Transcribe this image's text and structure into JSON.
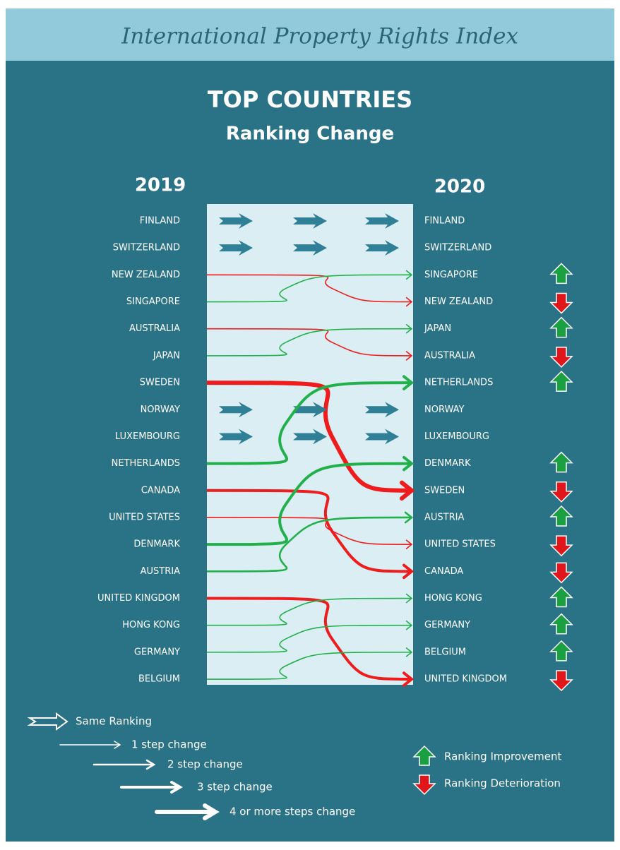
{
  "header": {
    "title": "International Property Rights Index"
  },
  "heading": "TOP COUNTRIES",
  "subheading": "Ranking Change",
  "years": {
    "left": "2019",
    "right": "2020"
  },
  "left": [
    "FINLAND",
    "SWITZERLAND",
    "NEW ZEALAND",
    "SINGAPORE",
    "AUSTRALIA",
    "JAPAN",
    "SWEDEN",
    "NORWAY",
    "LUXEMBOURG",
    "NETHERLANDS",
    "CANADA",
    "UNITED STATES",
    "DENMARK",
    "AUSTRIA",
    "UNITED KINGDOM",
    "HONG KONG",
    "GERMANY",
    "BELGIUM"
  ],
  "right": [
    "FINLAND",
    "SWITZERLAND",
    "SINGAPORE",
    "NEW ZEALAND",
    "JAPAN",
    "AUSTRALIA",
    "NETHERLANDS",
    "NORWAY",
    "LUXEMBOURG",
    "DENMARK",
    "SWEDEN",
    "AUSTRIA",
    "UNITED  STATES",
    "CANADA",
    "HONG  KONG",
    "GERMANY",
    "BELGIUM",
    "UNITED KINGDOM"
  ],
  "legend": {
    "same": "Same Ranking",
    "steps": [
      "1 step change",
      "2 step change",
      "3 step change",
      "4 or more  steps change"
    ],
    "improvement": "Ranking Improvement",
    "deterioration": "Ranking Deterioration"
  }
}
